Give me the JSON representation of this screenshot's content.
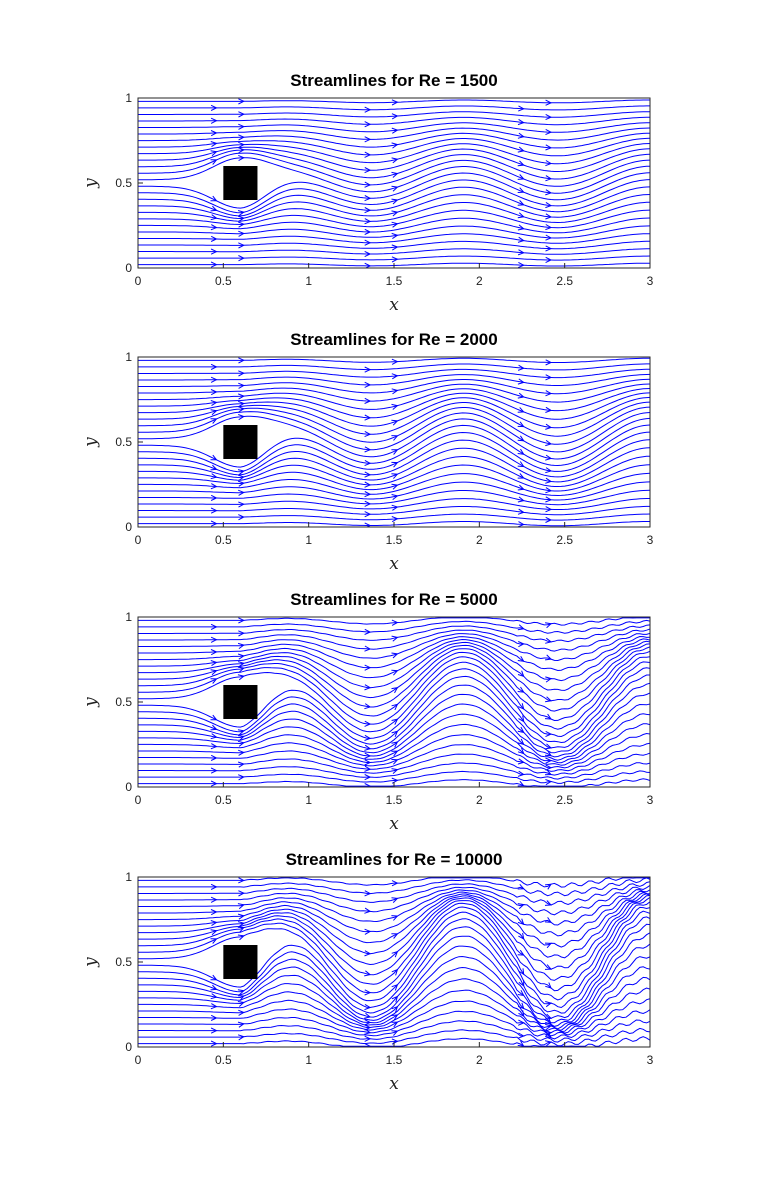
{
  "chart_data": [
    {
      "type": "streamline",
      "title": "Streamlines for Re = 1500",
      "xlabel": "x",
      "ylabel": "y",
      "xlim": [
        0,
        3
      ],
      "ylim": [
        0,
        1
      ],
      "xticks": [
        "0",
        "0.5",
        "1",
        "1.5",
        "2",
        "2.5",
        "3"
      ],
      "yticks": [
        "0",
        "0.5",
        "1"
      ],
      "line_color": "#0000ff",
      "obstacle": {
        "x": [
          0.5,
          0.7
        ],
        "y": [
          0.4,
          0.6
        ],
        "color": "#000000"
      },
      "reynolds": 1500,
      "wave_amplitude": 0.08
    },
    {
      "type": "streamline",
      "title": "Streamlines for Re = 2000",
      "xlabel": "x",
      "ylabel": "y",
      "xlim": [
        0,
        3
      ],
      "ylim": [
        0,
        1
      ],
      "xticks": [
        "0",
        "0.5",
        "1",
        "1.5",
        "2",
        "2.5",
        "3"
      ],
      "yticks": [
        "0",
        "0.5",
        "1"
      ],
      "line_color": "#0000ff",
      "obstacle": {
        "x": [
          0.5,
          0.7
        ],
        "y": [
          0.4,
          0.6
        ],
        "color": "#000000"
      },
      "reynolds": 2000,
      "wave_amplitude": 0.12
    },
    {
      "type": "streamline",
      "title": "Streamlines for Re = 5000",
      "xlabel": "x",
      "ylabel": "y",
      "xlim": [
        0,
        3
      ],
      "ylim": [
        0,
        1
      ],
      "xticks": [
        "0",
        "0.5",
        "1",
        "1.5",
        "2",
        "2.5",
        "3"
      ],
      "yticks": [
        "0",
        "0.5",
        "1"
      ],
      "line_color": "#0000ff",
      "obstacle": {
        "x": [
          0.5,
          0.7
        ],
        "y": [
          0.4,
          0.6
        ],
        "color": "#000000"
      },
      "reynolds": 5000,
      "wave_amplitude": 0.22
    },
    {
      "type": "streamline",
      "title": "Streamlines for Re = 10000",
      "xlabel": "x",
      "ylabel": "y",
      "xlim": [
        0,
        3
      ],
      "ylim": [
        0,
        1
      ],
      "xticks": [
        "0",
        "0.5",
        "1",
        "1.5",
        "2",
        "2.5",
        "3"
      ],
      "yticks": [
        "0",
        "0.5",
        "1"
      ],
      "line_color": "#0000ff",
      "obstacle": {
        "x": [
          0.5,
          0.7
        ],
        "y": [
          0.4,
          0.6
        ],
        "color": "#000000"
      },
      "reynolds": 10000,
      "wave_amplitude": 0.28
    }
  ]
}
